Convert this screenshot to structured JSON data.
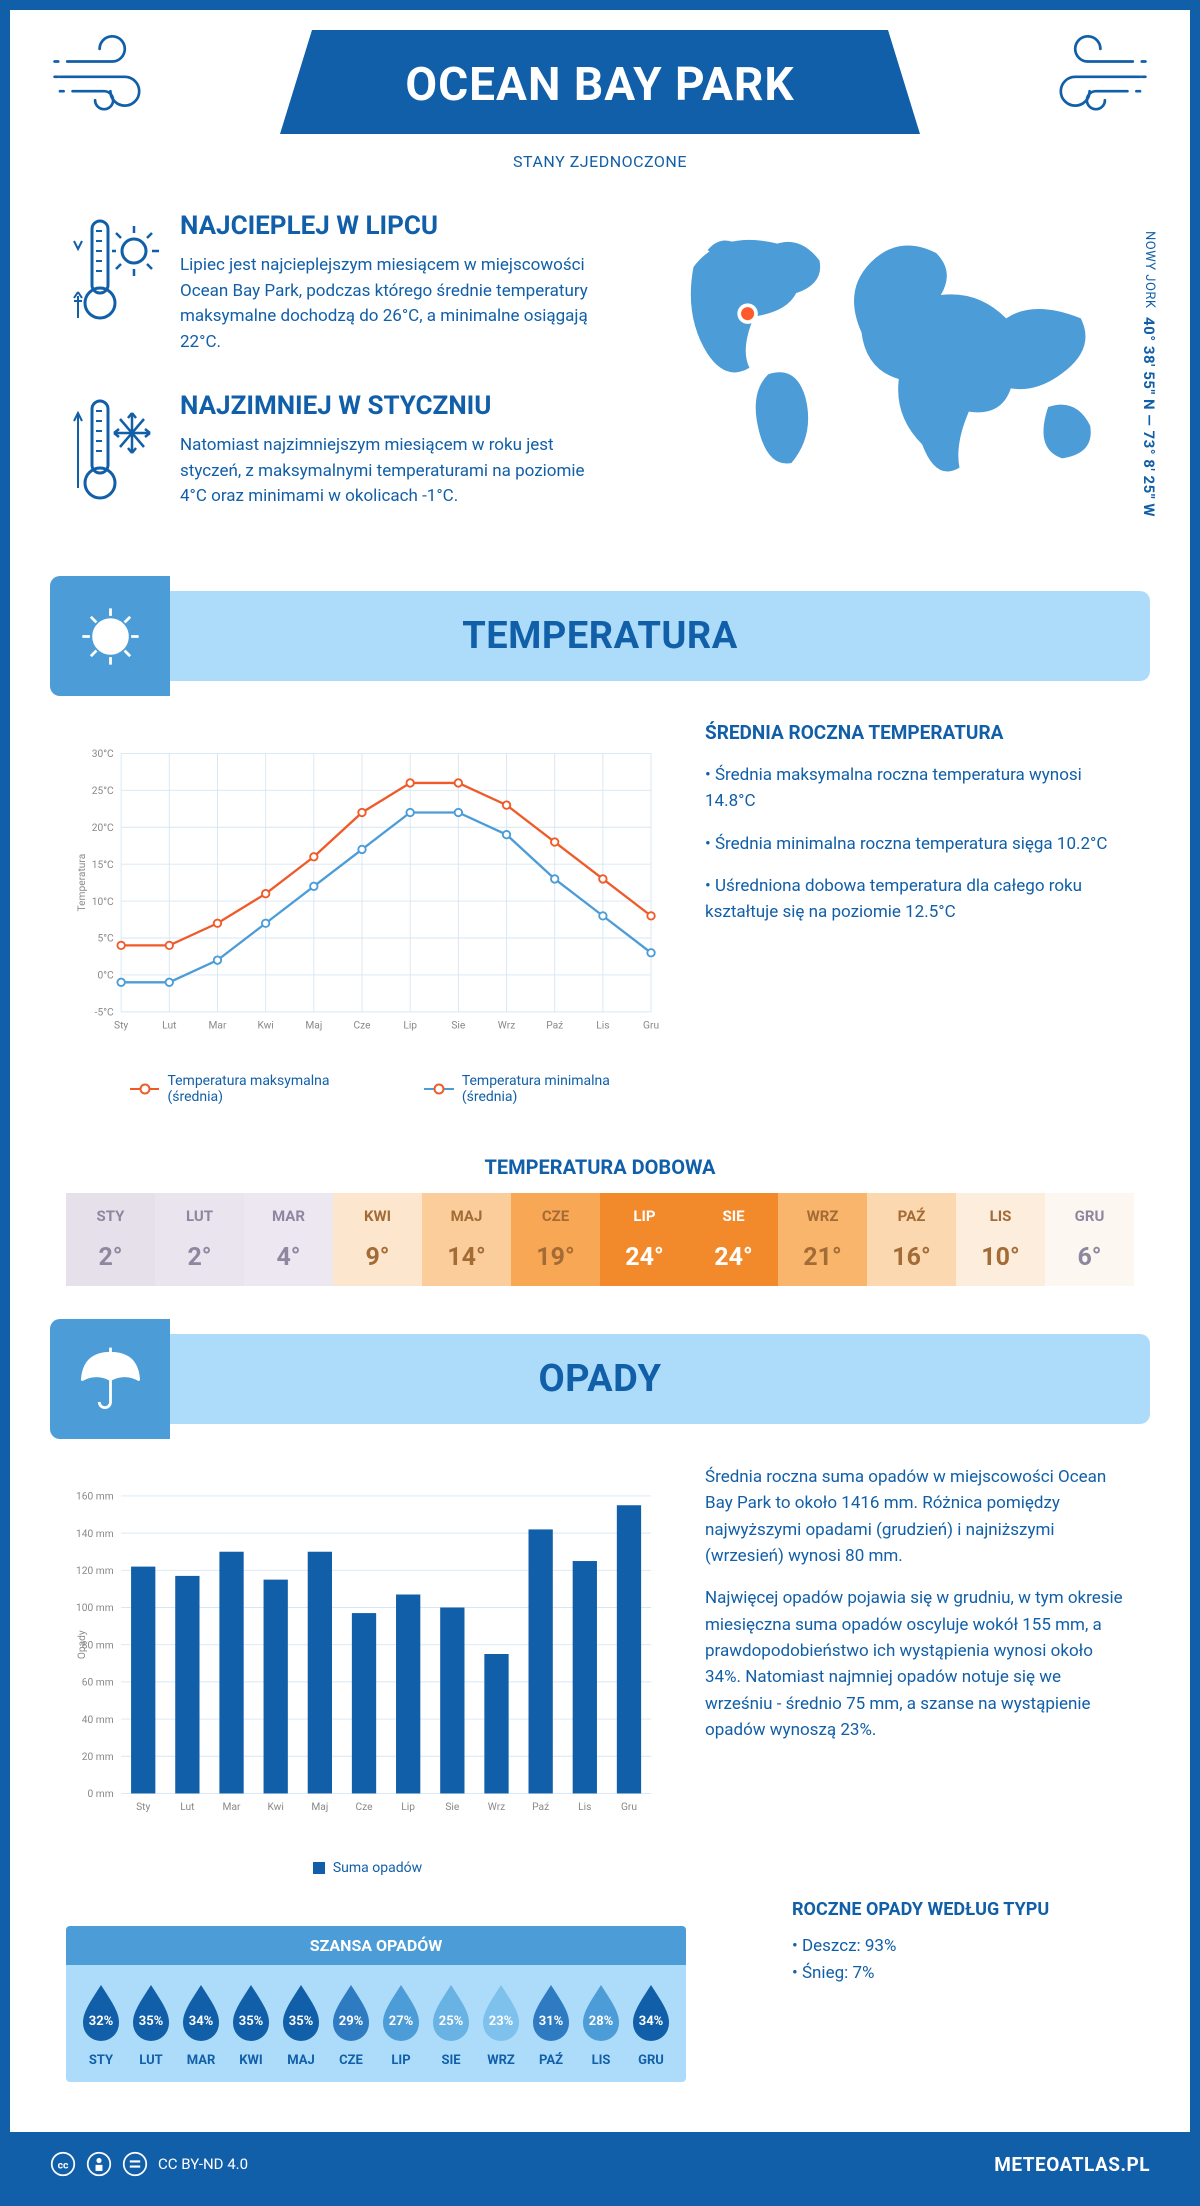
{
  "header": {
    "title": "OCEAN BAY PARK",
    "subtitle": "STANY ZJEDNOCZONE"
  },
  "coords": {
    "region": "NOWY JORK",
    "text": "40° 38' 55'' N — 73° 8' 25'' W"
  },
  "facts": {
    "hot": {
      "title": "NAJCIEPLEJ W LIPCU",
      "text": "Lipiec jest najcieplejszym miesiącem w miejscowości Ocean Bay Park, podczas którego średnie temperatury maksymalne dochodzą do 26°C, a minimalne osiągają 22°C."
    },
    "cold": {
      "title": "NAJZIMNIEJ W STYCZNIU",
      "text": "Natomiast najzimniejszym miesiącem w roku jest styczeń, z maksymalnymi temperaturami na poziomie 4°C oraz minimami w okolicach -1°C."
    }
  },
  "sections": {
    "temp": "TEMPERATURA",
    "precip": "OPADY"
  },
  "temp_chart": {
    "type": "line",
    "months": [
      "Sty",
      "Lut",
      "Mar",
      "Kwi",
      "Maj",
      "Cze",
      "Lip",
      "Sie",
      "Wrz",
      "Paź",
      "Lis",
      "Gru"
    ],
    "ylabel": "Temperatura",
    "ytick_step": 5,
    "ylim": [
      -5,
      30
    ],
    "max_series": {
      "label": "Temperatura maksymalna (średnia)",
      "color": "#f05a28",
      "values": [
        4,
        4,
        7,
        11,
        16,
        22,
        26,
        26,
        23,
        18,
        13,
        8
      ]
    },
    "min_series": {
      "label": "Temperatura minimalna (średnia)",
      "color": "#4c9cd8",
      "values": [
        -1,
        -1,
        2,
        7,
        12,
        17,
        22,
        22,
        19,
        13,
        8,
        3
      ]
    },
    "grid_color": "#d6e7f4",
    "axis_color": "#cccccc",
    "label_fontsize": 12,
    "background": "#ffffff"
  },
  "temp_summary": {
    "title": "ŚREDNIA ROCZNA TEMPERATURA",
    "bullets": [
      "Średnia maksymalna roczna temperatura wynosi 14.8°C",
      "Średnia minimalna roczna temperatura sięga 10.2°C",
      "Uśredniona dobowa temperatura dla całego roku kształtuje się na poziomie 12.5°C"
    ]
  },
  "daily_temp": {
    "title": "TEMPERATURA DOBOWA",
    "months": [
      "STY",
      "LUT",
      "MAR",
      "KWI",
      "MAJ",
      "CZE",
      "LIP",
      "SIE",
      "WRZ",
      "PAŹ",
      "LIS",
      "GRU"
    ],
    "values": [
      "2°",
      "2°",
      "4°",
      "9°",
      "14°",
      "19°",
      "24°",
      "24°",
      "21°",
      "16°",
      "10°",
      "6°"
    ],
    "bg_colors": [
      "#e6e0ea",
      "#eae4ee",
      "#ede7f1",
      "#fde6ce",
      "#fbcd9a",
      "#f8a755",
      "#f28a2b",
      "#f28a2b",
      "#f9b56c",
      "#fcd8b0",
      "#fdeddd",
      "#fdf7f1"
    ],
    "text_colors": [
      "#8d87a0",
      "#8d87a0",
      "#8d87a0",
      "#a36b35",
      "#a36b35",
      "#a36b35",
      "#ffffff",
      "#ffffff",
      "#a36b35",
      "#a36b35",
      "#a36b35",
      "#8d87a0"
    ]
  },
  "precip_chart": {
    "type": "bar",
    "months": [
      "Sty",
      "Lut",
      "Mar",
      "Kwi",
      "Maj",
      "Cze",
      "Lip",
      "Sie",
      "Wrz",
      "Paź",
      "Lis",
      "Gru"
    ],
    "ylabel": "Opady",
    "ytick_step": 20,
    "ylim": [
      0,
      160
    ],
    "values": [
      122,
      117,
      130,
      115,
      130,
      97,
      107,
      100,
      75,
      142,
      125,
      155
    ],
    "bar_color": "#115fa8",
    "grid_color": "#d6e7f4",
    "legend": "Suma opadów"
  },
  "precip_text": {
    "p1": "Średnia roczna suma opadów w miejscowości Ocean Bay Park to około 1416 mm. Różnica pomiędzy najwyższymi opadami (grudzień) i najniższymi (wrzesień) wynosi 80 mm.",
    "p2": "Najwięcej opadów pojawia się w grudniu, w tym okresie miesięczna suma opadów oscyluje wokół 155 mm, a prawdopodobieństwo ich wystąpienia wynosi około 34%. Natomiast najmniej opadów notuje się we wrześniu - średnio 75 mm, a szanse na wystąpienie opadów wynoszą 23%."
  },
  "drops": {
    "title": "SZANSA OPADÓW",
    "months": [
      "STY",
      "LUT",
      "MAR",
      "KWI",
      "MAJ",
      "CZE",
      "LIP",
      "SIE",
      "WRZ",
      "PAŹ",
      "LIS",
      "GRU"
    ],
    "percents": [
      "32%",
      "35%",
      "34%",
      "35%",
      "35%",
      "29%",
      "27%",
      "25%",
      "23%",
      "31%",
      "28%",
      "34%"
    ],
    "colors": [
      "#115fa8",
      "#115fa8",
      "#115fa8",
      "#115fa8",
      "#115fa8",
      "#2f7bc1",
      "#4c9cd8",
      "#68b3e3",
      "#7dc1ec",
      "#2f7bc1",
      "#4c9cd8",
      "#115fa8"
    ]
  },
  "precip_type": {
    "title": "ROCZNE OPADY WEDŁUG TYPU",
    "rain": "Deszcz: 93%",
    "snow": "Śnieg: 7%"
  },
  "footer": {
    "license": "CC BY-ND 4.0",
    "brand": "METEOATLAS.PL"
  },
  "map": {
    "land_color": "#4c9cd8",
    "marker_color": "#ff5a2b",
    "marker_ring": "#ffffff"
  },
  "palette": {
    "dark_blue": "#115fa8",
    "mid_blue": "#4c9cd8",
    "light_blue": "#addcfa",
    "orange": "#f05a28"
  }
}
